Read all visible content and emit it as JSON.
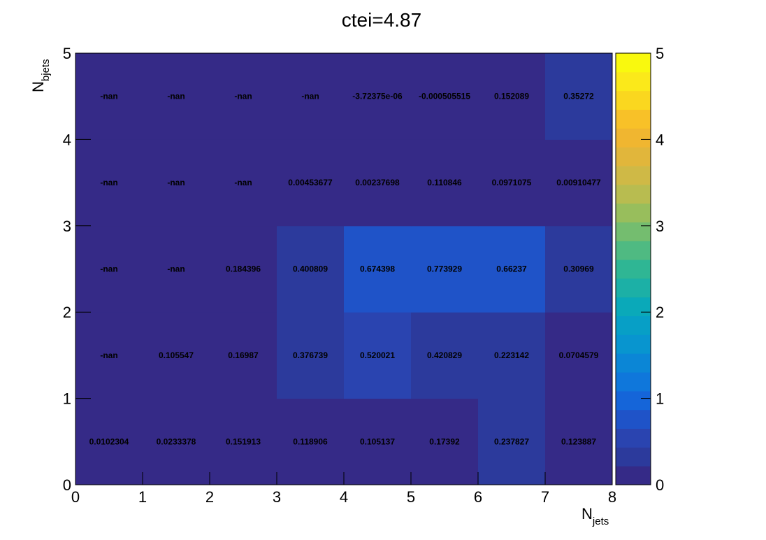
{
  "chart_data": {
    "type": "heatmap",
    "title": "ctei=4.87",
    "xlabel": "N",
    "xlabel_sub": "jets",
    "ylabel": "N",
    "ylabel_sub": "bjets",
    "xlim": [
      0,
      8
    ],
    "ylim": [
      0,
      5
    ],
    "x_ticks": [
      "0",
      "1",
      "2",
      "3",
      "4",
      "5",
      "6",
      "7",
      "8"
    ],
    "y_ticks": [
      "0",
      "1",
      "2",
      "3",
      "4",
      "5"
    ],
    "colorbar": {
      "min": 0,
      "max": 5,
      "ticks": [
        "0",
        "1",
        "2",
        "3",
        "4",
        "5"
      ]
    },
    "palette": [
      "#352a87",
      "#2c3a9c",
      "#2a44b0",
      "#1f53c8",
      "#1565d9",
      "#0f77db",
      "#0b86d6",
      "#0895cf",
      "#079fc6",
      "#0aa9b9",
      "#1cb0a6",
      "#2fb694",
      "#4fba82",
      "#74bd6f",
      "#98be5c",
      "#b8bc50",
      "#cfb946",
      "#e1b63b",
      "#f0b630",
      "#f8c128",
      "#fad71f",
      "#fbe91a",
      "#f9f90e"
    ],
    "cells": [
      [
        {
          "value": 0.0102304,
          "label": "0.0102304"
        },
        {
          "value": 0.0233378,
          "label": "0.0233378"
        },
        {
          "value": 0.151913,
          "label": "0.151913"
        },
        {
          "value": 0.118906,
          "label": "0.118906"
        },
        {
          "value": 0.105137,
          "label": "0.105137"
        },
        {
          "value": 0.17392,
          "label": "0.17392"
        },
        {
          "value": 0.237827,
          "label": "0.237827"
        },
        {
          "value": 0.123887,
          "label": "0.123887"
        }
      ],
      [
        {
          "value": null,
          "label": "-nan"
        },
        {
          "value": 0.105547,
          "label": "0.105547"
        },
        {
          "value": 0.16987,
          "label": "0.16987"
        },
        {
          "value": 0.376739,
          "label": "0.376739"
        },
        {
          "value": 0.520021,
          "label": "0.520021"
        },
        {
          "value": 0.420829,
          "label": "0.420829"
        },
        {
          "value": 0.223142,
          "label": "0.223142"
        },
        {
          "value": 0.0704579,
          "label": "0.0704579"
        }
      ],
      [
        {
          "value": null,
          "label": "-nan"
        },
        {
          "value": null,
          "label": "-nan"
        },
        {
          "value": 0.184396,
          "label": "0.184396"
        },
        {
          "value": 0.400809,
          "label": "0.400809"
        },
        {
          "value": 0.674398,
          "label": "0.674398"
        },
        {
          "value": 0.773929,
          "label": "0.773929"
        },
        {
          "value": 0.66237,
          "label": "0.66237"
        },
        {
          "value": 0.30969,
          "label": "0.30969"
        }
      ],
      [
        {
          "value": null,
          "label": "-nan"
        },
        {
          "value": null,
          "label": "-nan"
        },
        {
          "value": null,
          "label": "-nan"
        },
        {
          "value": 0.00453677,
          "label": "0.00453677"
        },
        {
          "value": 0.00237698,
          "label": "0.00237698"
        },
        {
          "value": 0.110846,
          "label": "0.110846"
        },
        {
          "value": 0.0971075,
          "label": "0.0971075"
        },
        {
          "value": 0.00910477,
          "label": "0.00910477"
        }
      ],
      [
        {
          "value": null,
          "label": "-nan"
        },
        {
          "value": null,
          "label": "-nan"
        },
        {
          "value": null,
          "label": "-nan"
        },
        {
          "value": null,
          "label": "-nan"
        },
        {
          "value": -3.72375e-06,
          "label": "-3.72375e-06"
        },
        {
          "value": -0.000505515,
          "label": "-0.000505515"
        },
        {
          "value": 0.152089,
          "label": "0.152089"
        },
        {
          "value": 0.35272,
          "label": "0.35272"
        }
      ]
    ]
  }
}
